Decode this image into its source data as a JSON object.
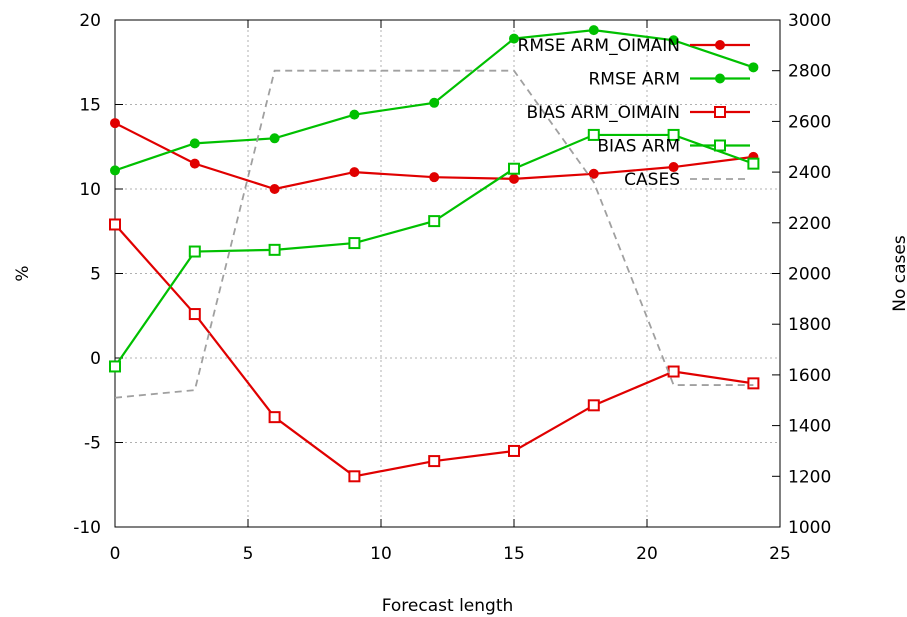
{
  "chart_data": {
    "type": "line",
    "xlabel": "Forecast length",
    "ylabel": "%",
    "y2label": "No cases",
    "xlim": [
      0,
      25
    ],
    "ylim": [
      -10,
      20
    ],
    "y2lim": [
      1000,
      3000
    ],
    "xticks": [
      "0",
      "5",
      "10",
      "15",
      "20",
      "25"
    ],
    "yticks": [
      "-10",
      "-5",
      "0",
      "5",
      "10",
      "15",
      "20"
    ],
    "y2ticks": [
      "1000",
      "1200",
      "1400",
      "1600",
      "1800",
      "2000",
      "2200",
      "2400",
      "2600",
      "2800",
      "3000"
    ],
    "grid": true,
    "legend_position": "top-right",
    "x": [
      0,
      3,
      6,
      9,
      12,
      15,
      18,
      21,
      24
    ],
    "series": [
      {
        "name": "RMSE ARM_OIMAIN",
        "axis": "left",
        "color": "#e00000",
        "marker": "filled-circle",
        "values": [
          13.9,
          11.5,
          10.0,
          11.0,
          10.7,
          10.6,
          10.9,
          11.3,
          11.9
        ]
      },
      {
        "name": "RMSE ARM",
        "axis": "left",
        "color": "#00c000",
        "marker": "filled-circle",
        "values": [
          11.1,
          12.7,
          13.0,
          14.4,
          15.1,
          18.9,
          19.4,
          18.8,
          17.2
        ]
      },
      {
        "name": "BIAS ARM_OIMAIN",
        "axis": "left",
        "color": "#e00000",
        "marker": "open-square",
        "values": [
          7.9,
          2.6,
          -3.5,
          -7.0,
          -6.1,
          -5.5,
          -2.8,
          -0.8,
          -1.5
        ]
      },
      {
        "name": "BIAS ARM",
        "axis": "left",
        "color": "#00c000",
        "marker": "open-square",
        "values": [
          -0.5,
          6.3,
          6.4,
          6.8,
          8.1,
          11.2,
          13.2,
          13.2,
          11.5
        ]
      },
      {
        "name": "CASES",
        "axis": "right",
        "color": "#a0a0a0",
        "dashed": true,
        "values": [
          1510,
          1540,
          2800,
          2800,
          2800,
          2800,
          2360,
          1560,
          1560
        ]
      }
    ]
  }
}
